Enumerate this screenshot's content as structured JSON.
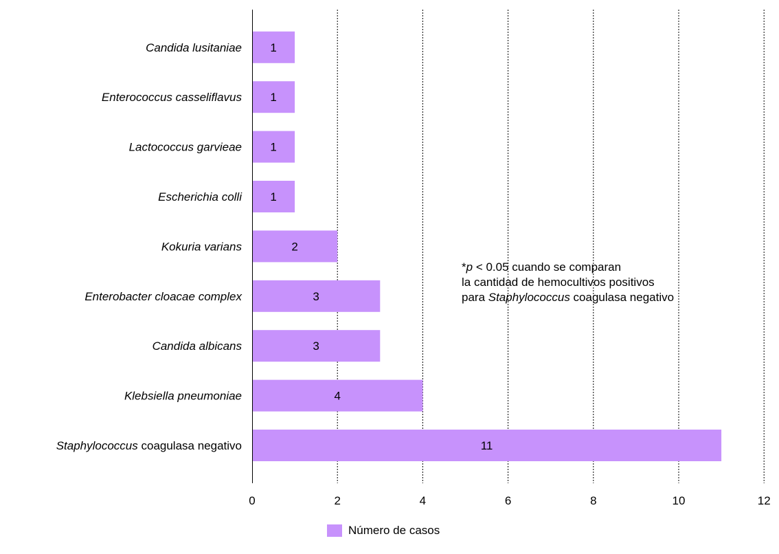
{
  "chart_data": {
    "type": "bar",
    "orientation": "horizontal",
    "categories": [
      "Staphylococcus coagulasa negativo",
      "Klebsiella pneumoniae",
      "Candida albicans",
      "Enterobacter cloacae complex",
      "Kokuria varians",
      "Escherichia colli",
      "Lactococcus garvieae",
      "Enterococcus casseliflavus",
      "Candida lusitaniae"
    ],
    "category_parts": [
      [
        {
          "text": "Staphylococcus",
          "italic": true
        },
        {
          "text": " coagulasa negativo",
          "italic": false
        }
      ],
      [
        {
          "text": "Klebsiella pneumoniae",
          "italic": true
        }
      ],
      [
        {
          "text": "Candida albicans",
          "italic": true
        }
      ],
      [
        {
          "text": "Enterobacter cloacae complex",
          "italic": true
        }
      ],
      [
        {
          "text": "Kokuria varians",
          "italic": true
        }
      ],
      [
        {
          "text": "Escherichia colli",
          "italic": true
        }
      ],
      [
        {
          "text": "Lactococcus garvieae",
          "italic": true
        }
      ],
      [
        {
          "text": "Enterococcus casseliflavus",
          "italic": true
        }
      ],
      [
        {
          "text": "Candida lusitaniae",
          "italic": true
        }
      ]
    ],
    "series": [
      {
        "name": "Número de casos",
        "values": [
          11,
          4,
          3,
          3,
          2,
          1,
          1,
          1,
          1
        ],
        "color": "#c792fc"
      }
    ],
    "xlim": [
      0,
      12
    ],
    "xticks": [
      0,
      2,
      4,
      6,
      8,
      10,
      12
    ],
    "grid": "vertical-dotted",
    "legend_position": "bottom-center",
    "data_labels": true
  },
  "annotation": {
    "line1_prefix": "*",
    "line1_p": "p",
    "line1_rest": " < 0.05 cuando se comparan",
    "line2": "la cantidad de hemocultivos positivos",
    "line3_prefix": "para ",
    "line3_italic": "Staphylococcus",
    "line3_rest": " coagulasa negativo"
  },
  "legend": {
    "label": "Número de casos",
    "color": "#c792fc"
  }
}
